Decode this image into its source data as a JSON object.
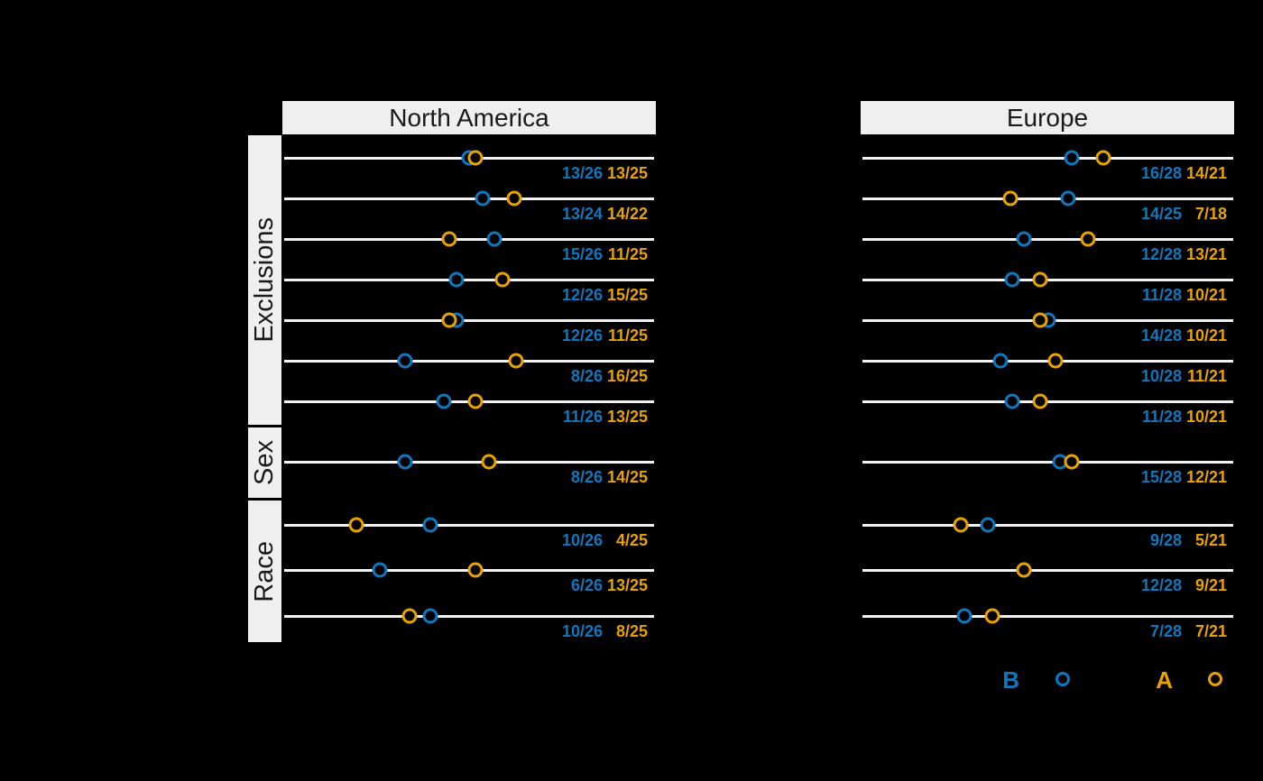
{
  "colors": {
    "background": "#000000",
    "row_line": "#f2f2f2",
    "strip_bg": "#efefef",
    "strip_text": "#1a1a1a",
    "series_b": "#0f78bd",
    "series_a": "#e8a202"
  },
  "chart_data": {
    "type": "scatter",
    "subtype": "dot-plot-fractions",
    "x_axis": {
      "min": 0,
      "max": 1,
      "visible": false,
      "note": "dot position = fraction value n/N with 5% padding each side"
    },
    "grid": "one horizontal line per row",
    "legend_position": "bottom-right",
    "legend": [
      {
        "label": "B",
        "marker": "open-circle",
        "color": "#0f78bd"
      },
      {
        "label": "A",
        "marker": "open-circle",
        "color": "#e8a202"
      }
    ],
    "sections": [
      {
        "label": "Exclusions",
        "row_indices": [
          0,
          1,
          2,
          3,
          4,
          5,
          6
        ]
      },
      {
        "label": "Sex",
        "row_indices": [
          7
        ]
      },
      {
        "label": "Race",
        "row_indices": [
          8,
          9,
          10
        ]
      }
    ],
    "panels": [
      {
        "title": "North America",
        "rows": [
          {
            "section": "Exclusions",
            "b": "13/26",
            "a": "13/25",
            "b_value": 0.5,
            "a_value": 0.52
          },
          {
            "section": "Exclusions",
            "b": "13/24",
            "a": "14/22",
            "b_value": 0.542,
            "a_value": 0.636
          },
          {
            "section": "Exclusions",
            "b": "15/26",
            "a": "11/25",
            "b_value": 0.577,
            "a_value": 0.44
          },
          {
            "section": "Exclusions",
            "b": "12/26",
            "a": "15/25",
            "b_value": 0.462,
            "a_value": 0.6
          },
          {
            "section": "Exclusions",
            "b": "12/26",
            "a": "11/25",
            "b_value": 0.462,
            "a_value": 0.44
          },
          {
            "section": "Exclusions",
            "b": "8/26",
            "a": "16/25",
            "b_value": 0.308,
            "a_value": 0.64
          },
          {
            "section": "Exclusions",
            "b": "11/26",
            "a": "13/25",
            "b_value": 0.423,
            "a_value": 0.52
          },
          {
            "section": "Sex",
            "b": "8/26",
            "a": "14/25",
            "b_value": 0.308,
            "a_value": 0.56
          },
          {
            "section": "Race",
            "b": "10/26",
            "a": "4/25",
            "b_value": 0.385,
            "a_value": 0.16
          },
          {
            "section": "Race",
            "b": "6/26",
            "a": "13/25",
            "b_value": 0.231,
            "a_value": 0.52
          },
          {
            "section": "Race",
            "b": "10/26",
            "a": "8/25",
            "b_value": 0.385,
            "a_value": 0.32
          }
        ]
      },
      {
        "title": "Europe",
        "rows": [
          {
            "section": "Exclusions",
            "b": "16/28",
            "a": "14/21",
            "b_value": 0.571,
            "a_value": 0.667
          },
          {
            "section": "Exclusions",
            "b": "14/25",
            "a": "7/18",
            "b_value": 0.56,
            "a_value": 0.389
          },
          {
            "section": "Exclusions",
            "b": "12/28",
            "a": "13/21",
            "b_value": 0.429,
            "a_value": 0.619
          },
          {
            "section": "Exclusions",
            "b": "11/28",
            "a": "10/21",
            "b_value": 0.393,
            "a_value": 0.476
          },
          {
            "section": "Exclusions",
            "b": "14/28",
            "a": "10/21",
            "b_value": 0.5,
            "a_value": 0.476
          },
          {
            "section": "Exclusions",
            "b": "10/28",
            "a": "11/21",
            "b_value": 0.357,
            "a_value": 0.524
          },
          {
            "section": "Exclusions",
            "b": "11/28",
            "a": "10/21",
            "b_value": 0.393,
            "a_value": 0.476
          },
          {
            "section": "Sex",
            "b": "15/28",
            "a": "12/21",
            "b_value": 0.536,
            "a_value": 0.571
          },
          {
            "section": "Race",
            "b": "9/28",
            "a": "5/21",
            "b_value": 0.321,
            "a_value": 0.238
          },
          {
            "section": "Race",
            "b": "12/28",
            "a": "9/21",
            "b_value": 0.429,
            "a_value": 0.429
          },
          {
            "section": "Race",
            "b": "7/28",
            "a": "7/21",
            "b_value": 0.25,
            "a_value": 0.333
          }
        ]
      }
    ]
  }
}
